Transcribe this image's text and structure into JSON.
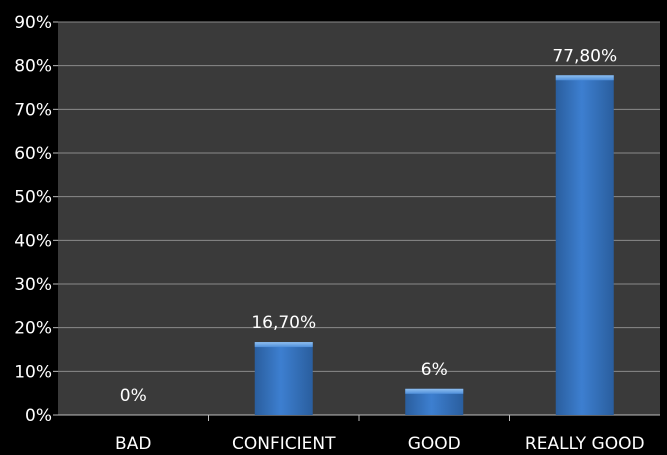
{
  "chart_data": {
    "type": "bar",
    "categories": [
      "BAD",
      "CONFICIENT",
      "GOOD",
      "REALLY GOOD"
    ],
    "values": [
      0,
      16.7,
      6,
      77.8
    ],
    "data_labels": [
      "0%",
      "16,70%",
      "6%",
      "77,80%"
    ],
    "ylim": [
      0,
      90
    ],
    "yticks": [
      0,
      10,
      20,
      30,
      40,
      50,
      60,
      70,
      80,
      90
    ],
    "ytick_labels": [
      "0%",
      "10%",
      "20%",
      "30%",
      "40%",
      "50%",
      "60%",
      "70%",
      "80%",
      "90%"
    ],
    "grid": true,
    "legend": "none",
    "colors": {
      "background": "#000000",
      "plot_area": "#3a3a3a",
      "gridline": "#8a8a8a",
      "bar": "#3d7fd0",
      "text": "#ffffff"
    }
  }
}
